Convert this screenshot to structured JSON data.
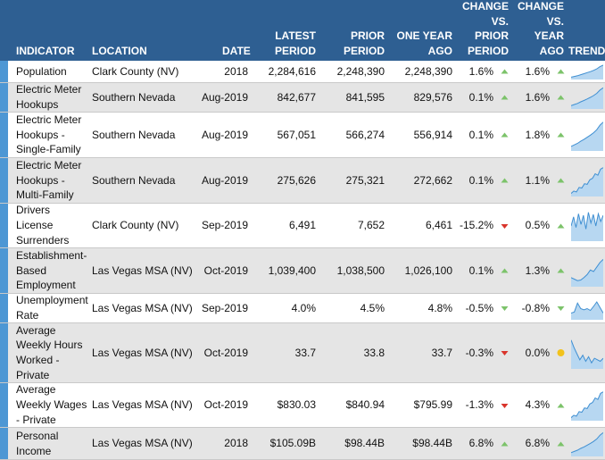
{
  "headers": {
    "indicator": "INDICATOR",
    "location": "LOCATION",
    "date": "DATE",
    "latest": [
      "LATEST",
      "PERIOD"
    ],
    "prior": [
      "PRIOR",
      "PERIOD"
    ],
    "year_ago": [
      "ONE YEAR",
      "AGO"
    ],
    "chg_prior": [
      "CHANGE",
      "VS.",
      "PRIOR",
      "PERIOD"
    ],
    "chg_year": [
      "CHANGE",
      "VS.",
      "YEAR AGO"
    ],
    "trend": "TREND"
  },
  "colors": {
    "header_bg": "#2e5f92",
    "accent_bar": "#4d97d4",
    "up": "#7cc36a",
    "down": "#d9342b",
    "neutral": "#f2c21b",
    "sparkline_fill": "#b7d7f1",
    "sparkline_line": "#3f8fd2"
  },
  "rows": [
    {
      "indicator": "Population",
      "location": "Clark County (NV)",
      "date": "2018",
      "latest": "2,284,616",
      "prior": "2,248,390",
      "year_ago": "2,248,390",
      "chg_prior": "1.6%",
      "chg_prior_dir": "up",
      "chg_year": "1.6%",
      "chg_year_dir": "up",
      "trend_icon": "sparkline-rising"
    },
    {
      "indicator": "Electric Meter Hookups",
      "location": "Southern Nevada",
      "date": "Aug-2019",
      "latest": "842,677",
      "prior": "841,595",
      "year_ago": "829,576",
      "chg_prior": "0.1%",
      "chg_prior_dir": "up",
      "chg_year": "1.6%",
      "chg_year_dir": "up",
      "trend_icon": "sparkline-rising"
    },
    {
      "indicator": "Electric Meter Hookups - Single-Family",
      "location": "Southern Nevada",
      "date": "Aug-2019",
      "latest": "567,051",
      "prior": "566,274",
      "year_ago": "556,914",
      "chg_prior": "0.1%",
      "chg_prior_dir": "up",
      "chg_year": "1.8%",
      "chg_year_dir": "up",
      "trend_icon": "sparkline-rising"
    },
    {
      "indicator": "Electric Meter Hookups - Multi-Family",
      "location": "Southern Nevada",
      "date": "Aug-2019",
      "latest": "275,626",
      "prior": "275,321",
      "year_ago": "272,662",
      "chg_prior": "0.1%",
      "chg_prior_dir": "up",
      "chg_year": "1.1%",
      "chg_year_dir": "up",
      "trend_icon": "sparkline-rising-noisy"
    },
    {
      "indicator": "Drivers License Surrenders",
      "location": "Clark County (NV)",
      "date": "Sep-2019",
      "latest": "6,491",
      "prior": "7,652",
      "year_ago": "6,461",
      "chg_prior": "-15.2%",
      "chg_prior_dir": "down",
      "chg_year": "0.5%",
      "chg_year_dir": "up",
      "trend_icon": "sparkline-volatile"
    },
    {
      "indicator": "Establishment-Based Employment",
      "location": "Las Vegas MSA (NV)",
      "date": "Oct-2019",
      "latest": "1,039,400",
      "prior": "1,038,500",
      "year_ago": "1,026,100",
      "chg_prior": "0.1%",
      "chg_prior_dir": "up",
      "chg_year": "1.3%",
      "chg_year_dir": "up",
      "trend_icon": "sparkline-dip-rise"
    },
    {
      "indicator": "Unemployment Rate",
      "location": "Las Vegas MSA (NV)",
      "date": "Sep-2019",
      "latest": "4.0%",
      "prior": "4.5%",
      "year_ago": "4.8%",
      "chg_prior": "-0.5%",
      "chg_prior_dir": "down-good",
      "chg_year": "-0.8%",
      "chg_year_dir": "down-good",
      "trend_icon": "sparkline-spike-fall"
    },
    {
      "indicator": "Average Weekly Hours Worked - Private",
      "location": "Las Vegas MSA (NV)",
      "date": "Oct-2019",
      "latest": "33.7",
      "prior": "33.8",
      "year_ago": "33.7",
      "chg_prior": "-0.3%",
      "chg_prior_dir": "down",
      "chg_year": "0.0%",
      "chg_year_dir": "neutral",
      "trend_icon": "sparkline-fall-noisy"
    },
    {
      "indicator": "Average Weekly Wages - Private",
      "location": "Las Vegas MSA (NV)",
      "date": "Oct-2019",
      "latest": "$830.03",
      "prior": "$840.94",
      "year_ago": "$795.99",
      "chg_prior": "-1.3%",
      "chg_prior_dir": "down",
      "chg_year": "4.3%",
      "chg_year_dir": "up",
      "trend_icon": "sparkline-rising-noisy"
    },
    {
      "indicator": "Personal Income",
      "location": "Las Vegas MSA (NV)",
      "date": "2018",
      "latest": "$105.09B",
      "prior": "$98.44B",
      "year_ago": "$98.44B",
      "chg_prior": "6.8%",
      "chg_prior_dir": "up",
      "chg_year": "6.8%",
      "chg_year_dir": "up",
      "trend_icon": "sparkline-rising"
    }
  ]
}
